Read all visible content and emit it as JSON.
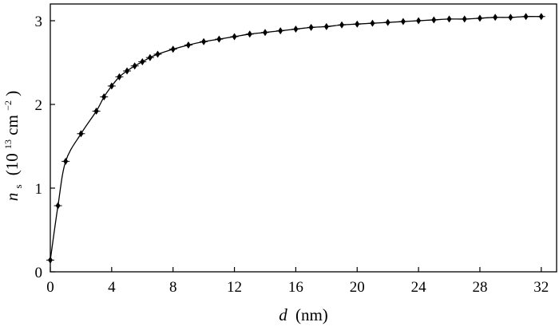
{
  "chart_data": {
    "type": "line",
    "title": "",
    "x_axis": {
      "label_var": "d",
      "label_unit": "(nm)",
      "range": [
        0,
        33
      ],
      "ticks": [
        0,
        4,
        8,
        12,
        16,
        20,
        24,
        28,
        32
      ],
      "tick_labels": [
        "0",
        "4",
        "8",
        "12",
        "16",
        "20",
        "24",
        "28",
        "32"
      ]
    },
    "y_axis": {
      "label_var": "n",
      "label_sub": "s",
      "label_open": "(10",
      "label_exp": "13",
      "label_unit": " cm",
      "label_unit_exp": "−2",
      "label_close": ")",
      "range": [
        0,
        3.2
      ],
      "ticks": [
        0,
        1,
        2,
        3
      ],
      "tick_labels": [
        "0",
        "1",
        "2",
        "3"
      ]
    },
    "grid": false,
    "legend": "none",
    "series": [
      {
        "color": "#000000",
        "marker": "diamond",
        "x": [
          0,
          0.5,
          1,
          2,
          3,
          3.5,
          4,
          4.5,
          5,
          5.5,
          6,
          6.5,
          7,
          8,
          9,
          10,
          11,
          12,
          13,
          14,
          15,
          16,
          17,
          18,
          19,
          20,
          21,
          22,
          23,
          24,
          25,
          26,
          27,
          28,
          29,
          30,
          31,
          32
        ],
        "y": [
          0.14,
          0.79,
          1.32,
          1.65,
          1.92,
          2.09,
          2.22,
          2.33,
          2.4,
          2.46,
          2.51,
          2.56,
          2.6,
          2.66,
          2.71,
          2.75,
          2.78,
          2.81,
          2.84,
          2.86,
          2.88,
          2.9,
          2.92,
          2.93,
          2.95,
          2.96,
          2.97,
          2.98,
          2.99,
          3.0,
          3.01,
          3.02,
          3.02,
          3.03,
          3.04,
          3.04,
          3.05,
          3.05
        ]
      }
    ]
  }
}
